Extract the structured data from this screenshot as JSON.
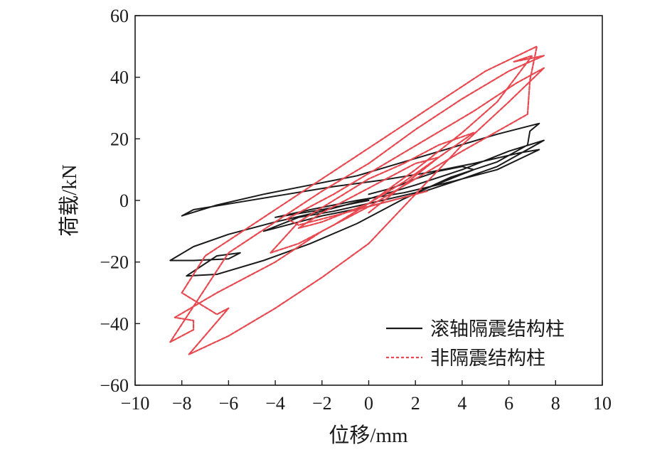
{
  "chart_data": {
    "type": "line",
    "xlabel": "位移/mm",
    "ylabel": "荷载/kN",
    "xlim": [
      -10,
      10
    ],
    "ylim": [
      -60,
      60
    ],
    "xticks": [
      -10,
      -8,
      -6,
      -4,
      -2,
      0,
      2,
      4,
      6,
      8,
      10
    ],
    "yticks": [
      -60,
      -40,
      -20,
      0,
      20,
      40,
      60
    ],
    "xtick_labels": [
      "−10",
      "−8",
      "−6",
      "−4",
      "−2",
      "0",
      "2",
      "4",
      "6",
      "8",
      "10"
    ],
    "ytick_labels": [
      "−60",
      "−40",
      "−20",
      "0",
      "20",
      "40",
      "60"
    ],
    "grid": false,
    "legend_position": "bottom-right",
    "series": [
      {
        "name": "滚轴隔震结构柱",
        "color": "#1a1a1a",
        "line_style": "solid",
        "x": [
          0,
          1,
          2,
          3,
          4,
          4.5,
          3.5,
          2,
          0,
          -1.5,
          -3,
          -4.5,
          -3.5,
          -2,
          0,
          2,
          4,
          5.5,
          7.5,
          6,
          4,
          2,
          0,
          -2,
          -4,
          -6,
          -7.5,
          -8.5,
          -7.5,
          -6,
          -5.5,
          -6.5,
          -7.8,
          -6.5,
          -4.5,
          -2.5,
          -0.5,
          1.5,
          3.5,
          5.5,
          6.8,
          6.9,
          7.3,
          5.5,
          3.5,
          1.5,
          -0.5,
          -2.5,
          -4.5,
          -6.5,
          -8,
          -7.5,
          -5.5,
          -3.5,
          -1.5,
          0.5,
          2.5,
          4.5,
          6.5,
          7.3,
          5.5,
          3.5,
          1.5,
          -0.5,
          -2.5,
          -4,
          -2,
          0
        ],
        "y": [
          2,
          4,
          7,
          9.5,
          11,
          10,
          7,
          2.5,
          -1,
          -3.5,
          -5.5,
          -10,
          -8,
          -5,
          -2,
          2,
          7,
          11,
          19.5,
          16,
          10,
          5,
          0.5,
          -3.5,
          -7,
          -11,
          -15,
          -19.5,
          -19.5,
          -19,
          -17,
          -18,
          -24.5,
          -24,
          -19.5,
          -14,
          -7.5,
          0.5,
          7.5,
          12.5,
          18,
          22.5,
          25,
          21.5,
          17,
          12.5,
          8,
          5,
          2,
          -1.5,
          -5,
          -3,
          -0.5,
          2,
          4.5,
          6.5,
          9,
          12,
          15.5,
          16.5,
          10,
          6,
          2.5,
          0,
          -3,
          -5.5,
          -3,
          0
        ]
      },
      {
        "name": "非隔震结构柱",
        "color": "#e8484f",
        "line_style": "dashed",
        "x": [
          0,
          1,
          2,
          3,
          2,
          1,
          0,
          -1,
          -2,
          -3,
          -2,
          -1,
          0,
          1.5,
          3,
          4.5,
          3,
          1.5,
          0,
          -1.5,
          -3,
          -4.2,
          -3,
          -1.5,
          0,
          2,
          4,
          5.5,
          7,
          6.2,
          7.5,
          6,
          4,
          2,
          0,
          -2,
          -4,
          -6,
          -8.5,
          -7.5,
          -7.5,
          -8.3,
          -6.5,
          -4,
          -2,
          0,
          2,
          4,
          6.8,
          6.9,
          7.2,
          5,
          3,
          1,
          -1,
          -3,
          -5,
          -7,
          -8,
          -6.5,
          -6,
          -7.7,
          -6,
          -4,
          -2,
          0,
          2,
          4,
          6,
          7.5,
          6.3,
          4.5,
          2.5,
          0.5,
          -1.5,
          -3.5,
          -3,
          -1.5,
          0,
          1.5,
          2.5
        ],
        "y": [
          -4,
          2,
          8,
          14,
          12,
          8,
          4,
          0,
          -4,
          -9,
          -7,
          -4,
          -1,
          6,
          14,
          22,
          18,
          12,
          7,
          0,
          -7,
          -17,
          -14,
          -8,
          -1,
          10,
          22,
          32,
          47,
          45,
          47,
          42,
          33,
          23,
          12,
          3,
          -7,
          -17,
          -46,
          -42,
          -39,
          -38,
          -30,
          -20,
          -10,
          -2,
          7,
          16,
          28,
          39,
          50,
          42,
          32,
          22,
          12,
          2,
          -8,
          -18,
          -30,
          -37,
          -35,
          -50,
          -44,
          -35,
          -25,
          -14,
          2,
          18,
          32,
          43,
          38,
          29,
          20,
          11,
          2,
          -6,
          -8,
          -5,
          -2,
          1,
          3
        ]
      }
    ]
  }
}
